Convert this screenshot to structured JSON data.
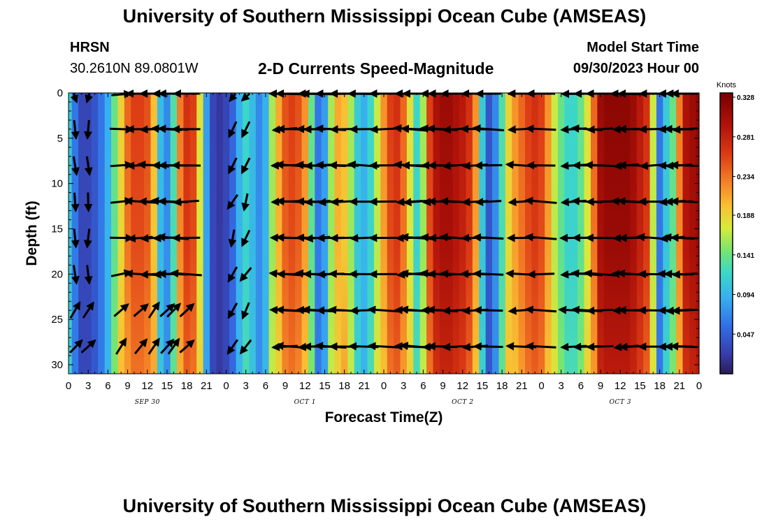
{
  "header": {
    "title": "University of Southern Mississippi Ocean Cube (AMSEAS)",
    "station": "HRSN",
    "coords": "30.2610N  89.0801W",
    "product": "2-D Currents Speed-Magnitude",
    "model_label": "Model Start Time",
    "model_time": "09/30/2023 Hour 00"
  },
  "footer": {
    "title": "University of Southern Mississippi Ocean Cube (AMSEAS)"
  },
  "chart_data": {
    "type": "heatmap",
    "title": "2-D Currents Speed-Magnitude",
    "xlabel": "Forecast Time(Z)",
    "ylabel": "Depth (ft)",
    "x_range_hours": [
      0,
      96
    ],
    "y_range_ft": [
      0,
      31
    ],
    "x_tick_labels": [
      "0",
      "3",
      "6",
      "9",
      "12",
      "15",
      "18",
      "21",
      "0",
      "3",
      "6",
      "9",
      "12",
      "15",
      "18",
      "21",
      "0",
      "3",
      "6",
      "9",
      "12",
      "15",
      "18",
      "21",
      "0",
      "3",
      "6",
      "9",
      "12",
      "15",
      "18",
      "21",
      "0"
    ],
    "y_ticks": [
      0,
      5,
      10,
      15,
      20,
      25,
      30
    ],
    "y_tick_labels": [
      "0",
      "5",
      "10",
      "15",
      "20",
      "25",
      "30"
    ],
    "date_labels": [
      {
        "text": "SEP 30",
        "hour": 12
      },
      {
        "text": "OCT 1",
        "hour": 36
      },
      {
        "text": "OCT 2",
        "hour": 60
      },
      {
        "text": "OCT 3",
        "hour": 84
      }
    ],
    "colorbar": {
      "unit": "Knots",
      "ticks": [
        "0.328",
        "0.281",
        "0.234",
        "0.188",
        "0.141",
        "0.094",
        "0.047"
      ],
      "tick_values": [
        0.328,
        0.281,
        0.234,
        0.188,
        0.141,
        0.094,
        0.047
      ],
      "range": [
        0.0,
        0.333
      ]
    },
    "speed_profile_hours": [
      0,
      1,
      2,
      3,
      4,
      5,
      6,
      7,
      8,
      9,
      10,
      11,
      12,
      13,
      14,
      15,
      16,
      17,
      18,
      19,
      20,
      21,
      22,
      23,
      24,
      25,
      26,
      27,
      28,
      29,
      30,
      31,
      32,
      33,
      34,
      35,
      36,
      37,
      38,
      39,
      40,
      41,
      42,
      43,
      44,
      45,
      46,
      47,
      48,
      49,
      50,
      51,
      52,
      53,
      54,
      55,
      56,
      57,
      58,
      59,
      60,
      61,
      62,
      63,
      64,
      65,
      66,
      67,
      68,
      69,
      70,
      71,
      72,
      73,
      74,
      75,
      76,
      77,
      78,
      79,
      80,
      81,
      82,
      83,
      84,
      85,
      86,
      87,
      88,
      89,
      90,
      91,
      92,
      93,
      94,
      95,
      96
    ],
    "speed_profile_knots": [
      0.11,
      0.06,
      0.03,
      0.03,
      0.04,
      0.06,
      0.09,
      0.14,
      0.19,
      0.24,
      0.26,
      0.26,
      0.25,
      0.2,
      0.1,
      0.07,
      0.13,
      0.23,
      0.27,
      0.26,
      0.18,
      0.08,
      0.03,
      0.02,
      0.03,
      0.05,
      0.09,
      0.12,
      0.1,
      0.07,
      0.09,
      0.16,
      0.21,
      0.25,
      0.26,
      0.25,
      0.22,
      0.14,
      0.06,
      0.08,
      0.16,
      0.21,
      0.2,
      0.16,
      0.11,
      0.09,
      0.12,
      0.17,
      0.22,
      0.26,
      0.27,
      0.24,
      0.18,
      0.12,
      0.16,
      0.26,
      0.3,
      0.31,
      0.31,
      0.3,
      0.29,
      0.27,
      0.22,
      0.11,
      0.04,
      0.07,
      0.13,
      0.19,
      0.22,
      0.24,
      0.26,
      0.27,
      0.26,
      0.22,
      0.17,
      0.14,
      0.12,
      0.12,
      0.14,
      0.18,
      0.24,
      0.31,
      0.32,
      0.32,
      0.32,
      0.32,
      0.31,
      0.29,
      0.27,
      0.17,
      0.06,
      0.11,
      0.14,
      0.23,
      0.3,
      0.31,
      0.32
    ],
    "vectors": {
      "depths_ft": [
        0,
        4,
        8,
        12,
        16,
        20,
        24,
        28
      ],
      "hours": [
        1,
        3,
        8,
        11,
        13,
        15,
        16,
        18,
        25,
        27,
        33,
        34,
        37,
        38,
        40,
        42,
        45,
        48,
        52,
        53,
        56,
        57,
        59,
        62,
        64,
        69,
        72,
        77,
        79,
        81,
        85,
        86,
        89,
        92,
        93,
        94
      ],
      "note": "arrow directions approximate"
    }
  }
}
